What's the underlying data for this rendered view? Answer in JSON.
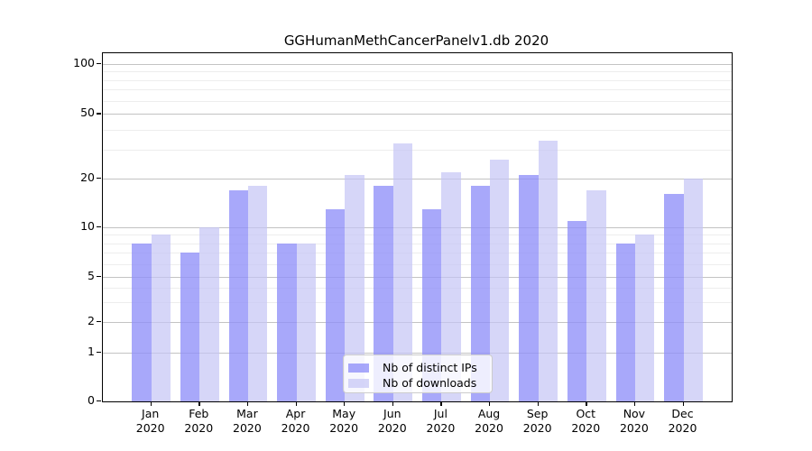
{
  "chart_data": {
    "type": "bar",
    "title": "GGHumanMethCancerPanelv1.db 2020",
    "categories": [
      "Jan 2020",
      "Feb 2020",
      "Mar 2020",
      "Apr 2020",
      "May 2020",
      "Jun 2020",
      "Jul 2020",
      "Aug 2020",
      "Sep 2020",
      "Oct 2020",
      "Nov 2020",
      "Dec 2020"
    ],
    "months": [
      "Jan",
      "Feb",
      "Mar",
      "Apr",
      "May",
      "Jun",
      "Jul",
      "Aug",
      "Sep",
      "Oct",
      "Nov",
      "Dec"
    ],
    "year": "2020",
    "series": [
      {
        "name": "Nb of distinct IPs",
        "color": "#9090f8",
        "opacity": 0.78,
        "values": [
          8,
          7,
          17,
          8,
          13,
          18,
          13,
          18,
          21,
          11,
          8,
          16
        ]
      },
      {
        "name": "Nb of downloads",
        "color": "#c4c4f5",
        "opacity": 0.7,
        "values": [
          9,
          10,
          18,
          8,
          21,
          33,
          22,
          26,
          34,
          17,
          9,
          20
        ]
      }
    ],
    "yscale": "log above 1, linear 0-1",
    "ylim": [
      0,
      100
    ],
    "yticks": [
      0,
      1,
      2,
      5,
      10,
      20,
      50,
      100
    ],
    "ytick_labels": [
      "0",
      "1",
      "2",
      "5",
      "10",
      "20",
      "50",
      "100"
    ],
    "minor_gridlines": [
      3,
      4,
      6,
      7,
      8,
      9,
      30,
      40,
      60,
      70,
      80,
      90
    ],
    "grid": true,
    "legend_position": "lower center",
    "gridline_major_color": "#c3c3c3",
    "gridline_minor_color": "#ededed"
  },
  "legend": {
    "items": [
      {
        "label": "Nb of distinct IPs"
      },
      {
        "label": "Nb of downloads"
      }
    ]
  }
}
